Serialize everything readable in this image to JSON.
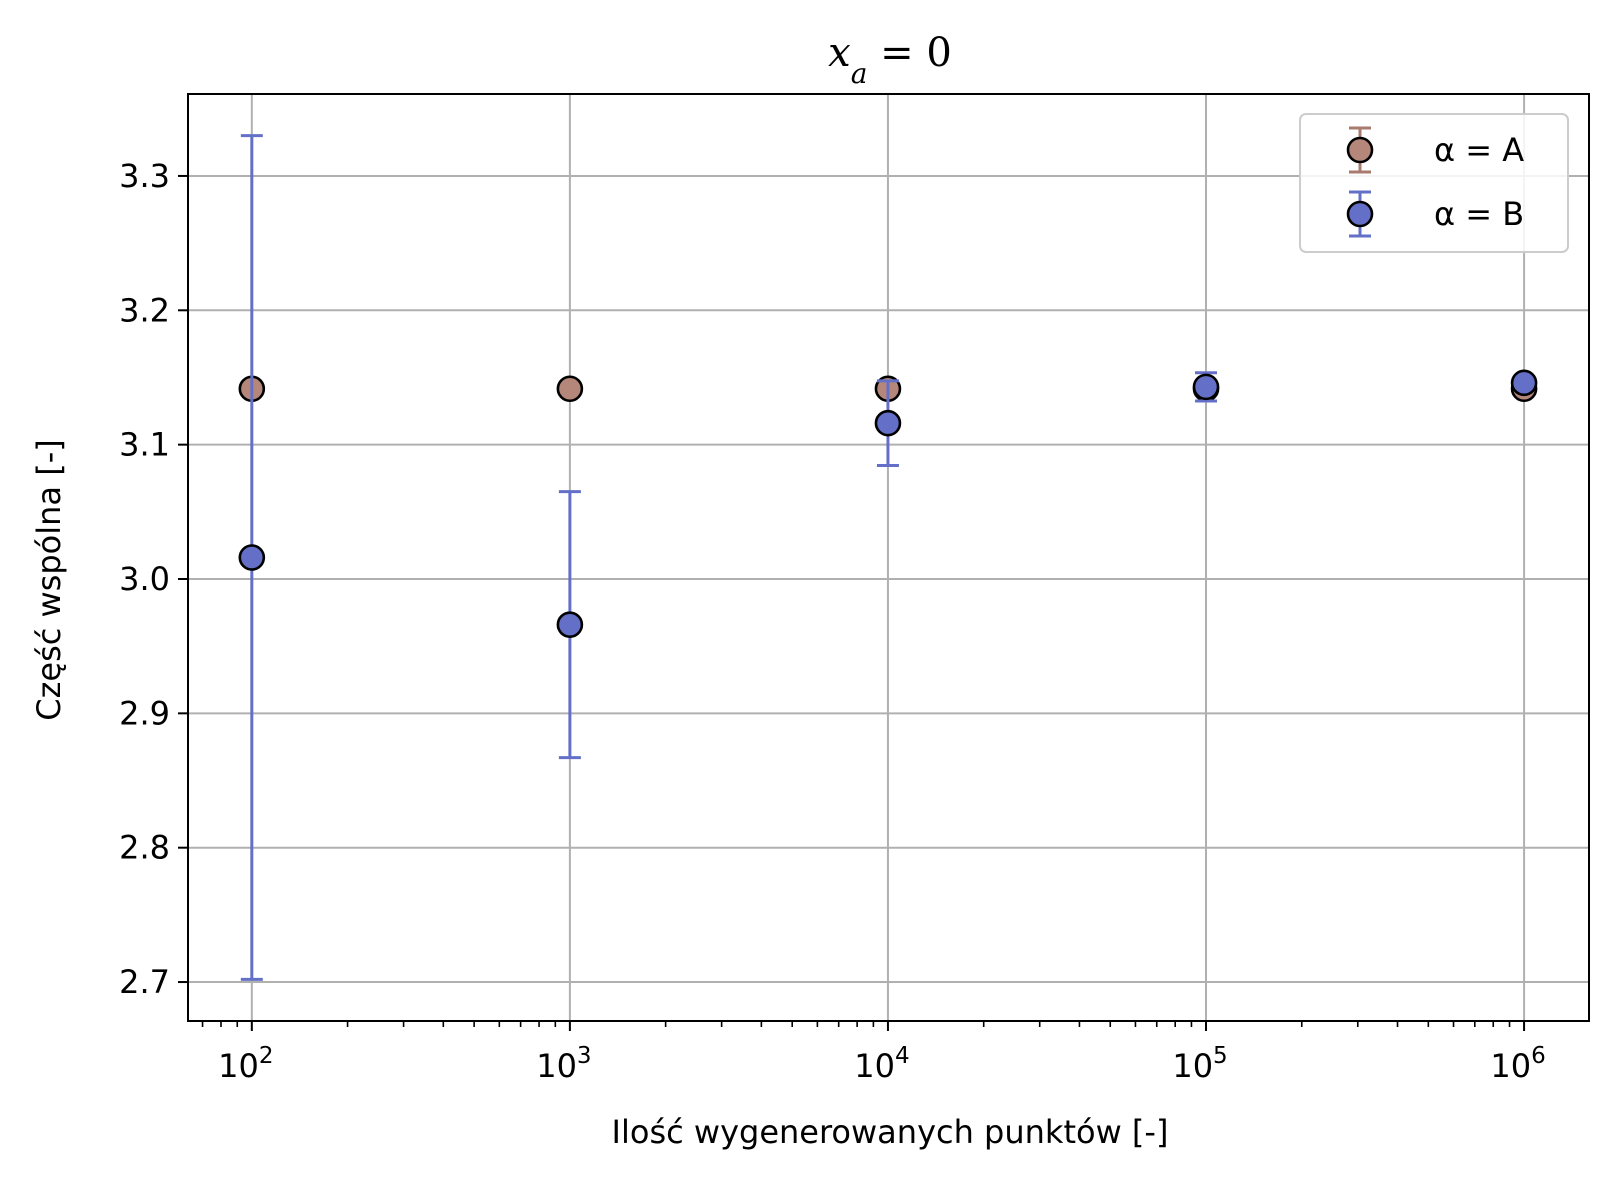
{
  "chart_data": {
    "type": "scatter",
    "title": {
      "base": "x",
      "subscript": "a",
      "rest": " = 0"
    },
    "xlabel": "Ilość wygenerowanych punktów [-]",
    "ylabel": "Część wspólna [-]",
    "xscale": "log",
    "xlim": [
      63,
      1600000
    ],
    "ylim": [
      2.671,
      3.361
    ],
    "yticks": [
      2.7,
      2.8,
      2.9,
      3.0,
      3.1,
      3.2,
      3.3
    ],
    "ytick_labels": [
      "2.7",
      "2.8",
      "2.9",
      "3.0",
      "3.1",
      "3.2",
      "3.3"
    ],
    "xticks": [
      {
        "value": 100,
        "base": "10",
        "exp": "2"
      },
      {
        "value": 1000,
        "base": "10",
        "exp": "3"
      },
      {
        "value": 10000,
        "base": "10",
        "exp": "4"
      },
      {
        "value": 100000,
        "base": "10",
        "exp": "5"
      },
      {
        "value": 1000000,
        "base": "10",
        "exp": "6"
      }
    ],
    "grid": true,
    "legend_position": "top-right",
    "series": [
      {
        "name": "α = A",
        "color": "#a87b6e",
        "marker_color": "#b5877a",
        "x": [
          100,
          1000,
          10000,
          100000,
          1000000
        ],
        "y": [
          3.1416,
          3.1416,
          3.1416,
          3.1416,
          3.1416
        ],
        "yerr": [
          0.0,
          0.0,
          0.0,
          0.0,
          0.0
        ]
      },
      {
        "name": "α = B",
        "color": "#6470c8",
        "marker_color": "#6470c8",
        "x": [
          100,
          1000,
          10000,
          100000,
          1000000
        ],
        "y": [
          3.016,
          2.966,
          3.116,
          3.143,
          3.146
        ],
        "yerr": [
          0.314,
          0.099,
          0.0315,
          0.0105,
          0.003
        ]
      }
    ]
  }
}
